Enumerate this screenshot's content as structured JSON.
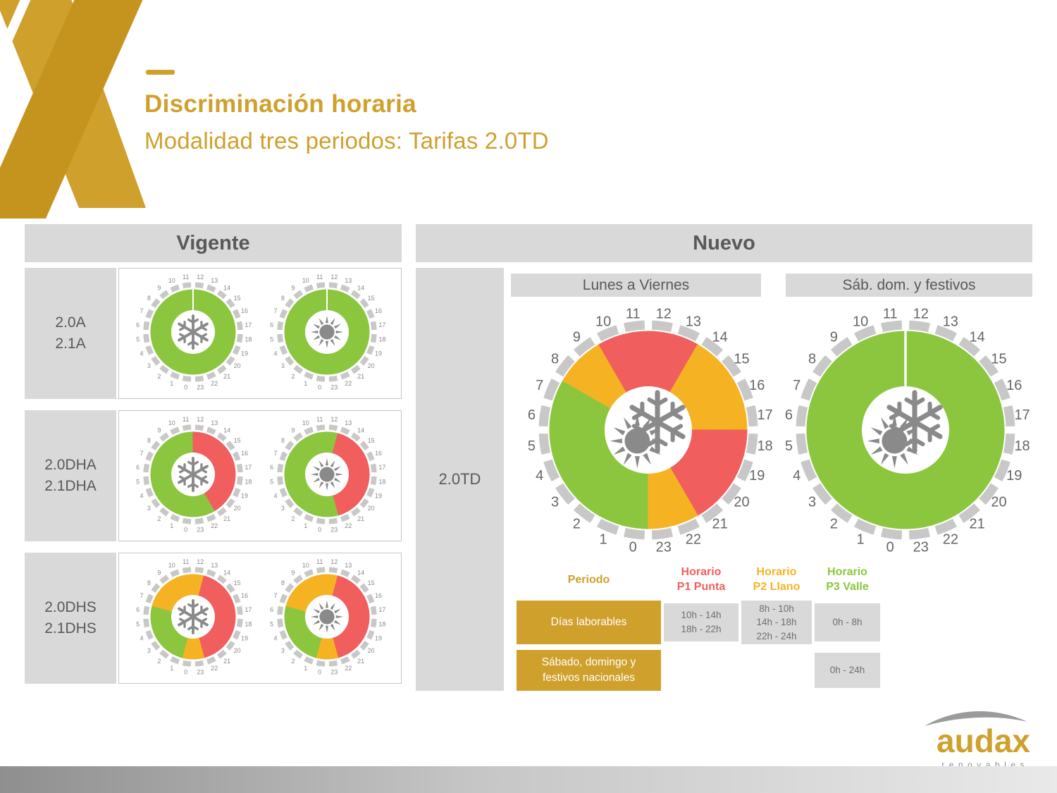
{
  "palette": {
    "gold": "#CFA02C",
    "gold2": "#C5941F",
    "green": "#8CC63F",
    "red": "#F15E5E",
    "yellow": "#F5B324",
    "panel": "#D9D9D9",
    "tick": "#C8C8C8",
    "ink": "#595959",
    "cell": "#6e6e6e",
    "icon": "#8a8a8a"
  },
  "title": {
    "heading": "Discriminación horaria",
    "subheading": "Modalidad tres periodos: Tarifas 2.0TD"
  },
  "vigente": {
    "header": "Vigente",
    "rows": [
      {
        "label": "2.0A\n2.1A",
        "clocks": [
          {
            "icon": "snowflake",
            "divider": true,
            "segments": [
              {
                "from": 0,
                "to": 24,
                "color": "green"
              }
            ]
          },
          {
            "icon": "sun",
            "divider": true,
            "segments": [
              {
                "from": 0,
                "to": 24,
                "color": "green"
              }
            ]
          }
        ]
      },
      {
        "label": "2.0DHA\n2.1DHA",
        "clocks": [
          {
            "icon": "snowflake",
            "segments": [
              {
                "from": 0,
                "to": 12,
                "color": "green"
              },
              {
                "from": 12,
                "to": 22,
                "color": "red"
              },
              {
                "from": 22,
                "to": 24,
                "color": "green"
              }
            ]
          },
          {
            "icon": "sun",
            "segments": [
              {
                "from": 0,
                "to": 13,
                "color": "green"
              },
              {
                "from": 13,
                "to": 23,
                "color": "red"
              },
              {
                "from": 23,
                "to": 24,
                "color": "green"
              }
            ]
          }
        ]
      },
      {
        "label": "2.0DHS\n2.1DHS",
        "clocks": [
          {
            "icon": "snowflake",
            "segments": [
              {
                "from": 0,
                "to": 1,
                "color": "yellow"
              },
              {
                "from": 1,
                "to": 7,
                "color": "green"
              },
              {
                "from": 7,
                "to": 13,
                "color": "yellow"
              },
              {
                "from": 13,
                "to": 23,
                "color": "red"
              },
              {
                "from": 23,
                "to": 24,
                "color": "yellow"
              }
            ]
          },
          {
            "icon": "sun",
            "segments": [
              {
                "from": 0,
                "to": 1,
                "color": "yellow"
              },
              {
                "from": 1,
                "to": 7,
                "color": "green"
              },
              {
                "from": 7,
                "to": 13,
                "color": "yellow"
              },
              {
                "from": 13,
                "to": 23,
                "color": "red"
              },
              {
                "from": 23,
                "to": 24,
                "color": "yellow"
              }
            ]
          }
        ]
      }
    ]
  },
  "nuevo": {
    "header": "Nuevo",
    "tariff": "2.0TD",
    "columns": [
      {
        "label": "Lunes a Viernes",
        "clock": {
          "icon": "both",
          "segments": [
            {
              "from": 0,
              "to": 8,
              "color": "green"
            },
            {
              "from": 8,
              "to": 10,
              "color": "yellow"
            },
            {
              "from": 10,
              "to": 14,
              "color": "red"
            },
            {
              "from": 14,
              "to": 18,
              "color": "yellow"
            },
            {
              "from": 18,
              "to": 22,
              "color": "red"
            },
            {
              "from": 22,
              "to": 24,
              "color": "yellow"
            }
          ]
        }
      },
      {
        "label": "Sáb. dom. y festivos",
        "clock": {
          "icon": "both",
          "divider": true,
          "segments": [
            {
              "from": 0,
              "to": 24,
              "color": "green"
            }
          ]
        }
      }
    ],
    "legend": {
      "period": "Periodo",
      "p1": "Horario\nP1 Punta",
      "p2": "Horario\nP2 Llano",
      "p3": "Horario\nP3 Valle"
    },
    "table": {
      "rows": [
        {
          "period": "Días laborables",
          "p1": "10h - 14h\n18h - 22h",
          "p2": "8h - 10h\n14h - 18h\n22h - 24h",
          "p3": "0h - 8h"
        },
        {
          "period": "Sábado, domingo y\nfestivos nacionales",
          "p3": "0h - 24h"
        }
      ]
    }
  },
  "footer": {
    "brand": "audax",
    "brand_sub": "renovables"
  },
  "chart_data": {
    "type": "pie",
    "note": "24h tariff clocks; values are hour ranges per period",
    "clocks": [
      {
        "name": "2.0TD Lunes a Viernes",
        "P1_punta_red": [
          "10-14",
          "18-22"
        ],
        "P2_llano_yellow": [
          "8-10",
          "14-18",
          "22-24"
        ],
        "P3_valle_green": [
          "0-8"
        ]
      },
      {
        "name": "2.0TD Sáb. dom. y festivos",
        "P3_valle_green": [
          "0-24"
        ]
      }
    ]
  }
}
